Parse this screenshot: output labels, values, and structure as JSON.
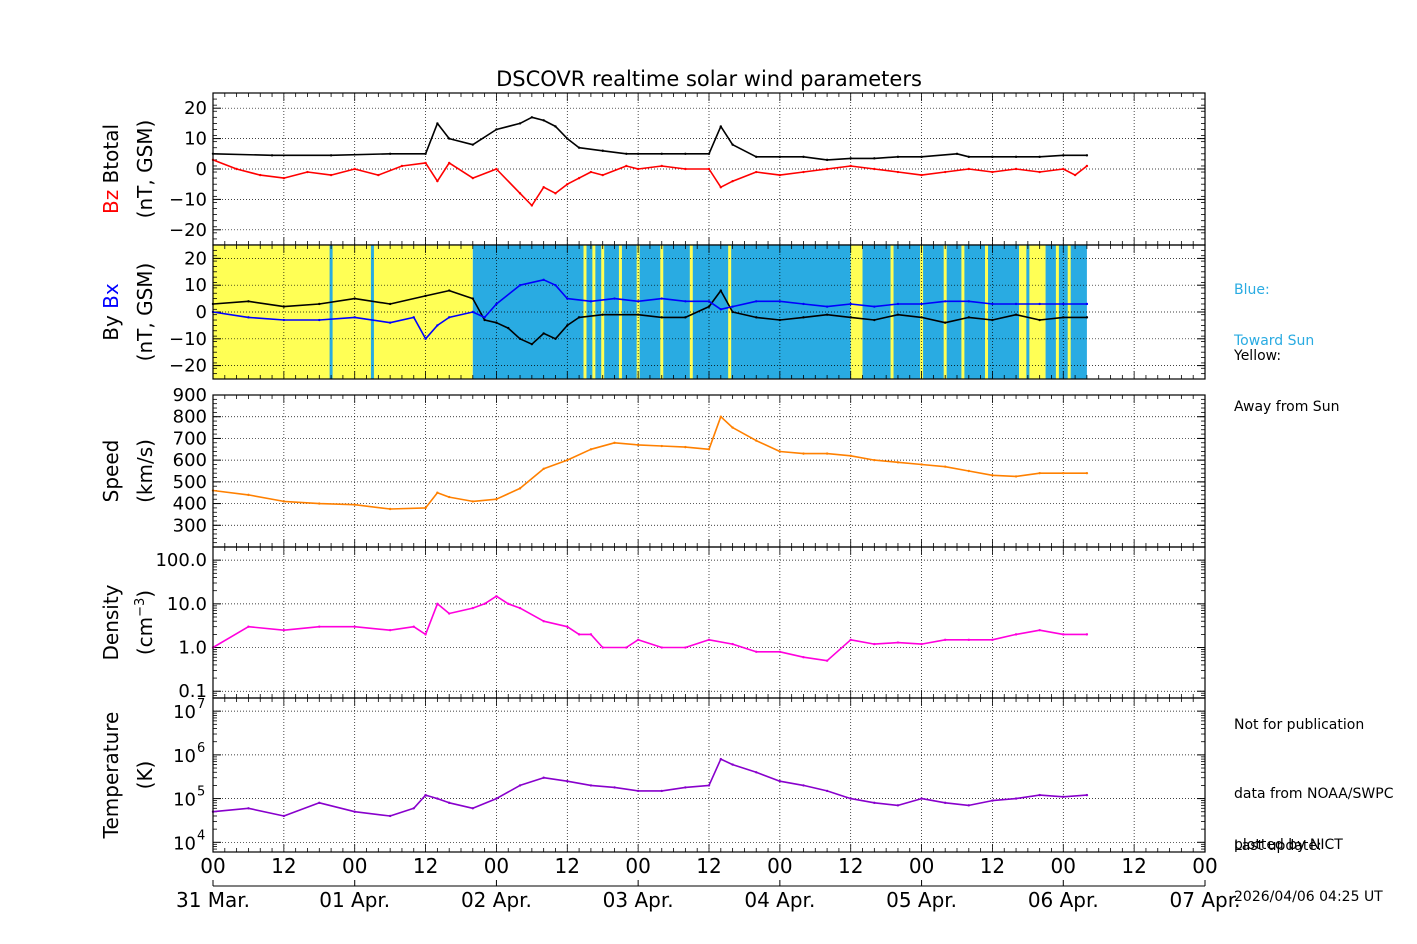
{
  "chart_data": {
    "type": "line",
    "title": "DSCOVR realtime solar wind parameters",
    "x_axis": {
      "unit": "hours since 31 Mar. 00 UT",
      "range": [
        0,
        168
      ],
      "hour_ticks": [
        0,
        12,
        24,
        36,
        48,
        60,
        72,
        84,
        96,
        108,
        120,
        132,
        144,
        156,
        168
      ],
      "hour_tick_labels": [
        "00",
        "12",
        "00",
        "12",
        "00",
        "12",
        "00",
        "12",
        "00",
        "12",
        "00",
        "12",
        "00",
        "12",
        "00"
      ],
      "day_ticks": [
        0,
        24,
        48,
        72,
        96,
        120,
        144,
        168
      ],
      "day_labels": [
        "31 Mar.",
        "01 Apr.",
        "02 Apr.",
        "03 Apr.",
        "04 Apr.",
        "05 Apr.",
        "06 Apr.",
        "07 Apr."
      ],
      "data_end": 148
    },
    "panels": [
      {
        "id": "btotal-bz",
        "scale": "linear",
        "ylim": [
          -25,
          25
        ],
        "ticks": [
          20,
          10,
          0,
          -10,
          -20
        ],
        "tick_labels": [
          "20",
          "10",
          "0",
          "−10",
          "−20"
        ],
        "ylabel_units": "(nT, GSM)",
        "label_a": "Bz",
        "label_a_color": "#ff0000",
        "label_b": "Btotal",
        "label_b_color": "#000000",
        "series": [
          {
            "name": "Btotal",
            "color": "#000000",
            "x": [
              0,
              10,
              20,
              30,
              36,
              38,
              40,
              44,
              48,
              52,
              54,
              56,
              58,
              60,
              62,
              66,
              70,
              72,
              76,
              80,
              84,
              86,
              88,
              92,
              96,
              100,
              104,
              108,
              112,
              116,
              120,
              126,
              128,
              132,
              136,
              140,
              144,
              148
            ],
            "y": [
              5,
              4.5,
              4.5,
              5,
              5,
              15,
              10,
              8,
              13,
              15,
              17,
              16,
              14,
              10,
              7,
              6,
              5,
              5,
              5,
              5,
              5,
              14,
              8,
              4,
              4,
              4,
              3,
              3.5,
              3.5,
              4,
              4,
              5,
              4,
              4,
              4,
              4,
              4.5,
              4.5
            ]
          },
          {
            "name": "Bz",
            "color": "#ff0000",
            "x": [
              0,
              4,
              8,
              12,
              16,
              20,
              24,
              28,
              32,
              36,
              38,
              40,
              44,
              48,
              52,
              54,
              56,
              58,
              60,
              62,
              64,
              66,
              70,
              72,
              76,
              80,
              84,
              86,
              88,
              92,
              96,
              100,
              104,
              108,
              112,
              116,
              120,
              124,
              128,
              132,
              136,
              140,
              144,
              146,
              148
            ],
            "y": [
              3,
              0,
              -2,
              -3,
              -1,
              -2,
              0,
              -2,
              1,
              2,
              -4,
              2,
              -3,
              0,
              -8,
              -12,
              -6,
              -8,
              -5,
              -3,
              -1,
              -2,
              1,
              0,
              1,
              0,
              0,
              -6,
              -4,
              -1,
              -2,
              -1,
              0,
              1,
              0,
              -1,
              -2,
              -1,
              0,
              -1,
              0,
              -1,
              0,
              -2,
              1
            ]
          }
        ]
      },
      {
        "id": "bx-by",
        "scale": "linear",
        "ylim": [
          -25,
          25
        ],
        "ticks": [
          20,
          10,
          0,
          -10,
          -20
        ],
        "tick_labels": [
          "20",
          "10",
          "0",
          "−10",
          "−20"
        ],
        "ylabel_units": "(nT, GSM)",
        "label_a": "By",
        "label_a_color": "#000000",
        "label_b": "Bx",
        "label_b_color": "#0000ff",
        "sector_colors": {
          "away": "#ffff55",
          "toward": "#29abe2"
        },
        "sectors": [
          {
            "start": 0,
            "end": 44,
            "type": "away"
          },
          {
            "start": 44,
            "end": 108,
            "type": "toward"
          },
          {
            "start": 108,
            "end": 110,
            "type": "away"
          },
          {
            "start": 110,
            "end": 136.5,
            "type": "toward"
          },
          {
            "start": 136.5,
            "end": 141,
            "type": "away"
          },
          {
            "start": 141,
            "end": 148,
            "type": "toward"
          }
        ],
        "sector_streaks": [
          {
            "at": 20,
            "type": "toward"
          },
          {
            "at": 27,
            "type": "toward"
          },
          {
            "at": 63,
            "type": "away"
          },
          {
            "at": 64.5,
            "type": "away"
          },
          {
            "at": 66,
            "type": "away"
          },
          {
            "at": 69,
            "type": "away"
          },
          {
            "at": 72,
            "type": "away"
          },
          {
            "at": 76,
            "type": "away"
          },
          {
            "at": 81,
            "type": "away"
          },
          {
            "at": 87.5,
            "type": "away"
          },
          {
            "at": 115,
            "type": "away"
          },
          {
            "at": 120,
            "type": "away"
          },
          {
            "at": 124,
            "type": "away"
          },
          {
            "at": 127,
            "type": "away"
          },
          {
            "at": 131,
            "type": "away"
          },
          {
            "at": 138,
            "type": "toward"
          },
          {
            "at": 143,
            "type": "away"
          },
          {
            "at": 145,
            "type": "away"
          }
        ],
        "series": [
          {
            "name": "By",
            "color": "#000000",
            "x": [
              0,
              6,
              12,
              18,
              24,
              30,
              36,
              40,
              44,
              46,
              48,
              50,
              52,
              54,
              56,
              58,
              60,
              62,
              66,
              72,
              76,
              80,
              84,
              86,
              88,
              92,
              96,
              100,
              104,
              108,
              112,
              116,
              120,
              124,
              128,
              132,
              136,
              140,
              144,
              148
            ],
            "y": [
              3,
              4,
              2,
              3,
              5,
              3,
              6,
              8,
              5,
              -3,
              -4,
              -6,
              -10,
              -12,
              -8,
              -10,
              -5,
              -2,
              -1,
              -1,
              -2,
              -2,
              2,
              8,
              0,
              -2,
              -3,
              -2,
              -1,
              -2,
              -3,
              -1,
              -2,
              -4,
              -2,
              -3,
              -1,
              -3,
              -2,
              -2
            ]
          },
          {
            "name": "Bx",
            "color": "#0000ff",
            "x": [
              0,
              6,
              12,
              18,
              24,
              30,
              34,
              36,
              38,
              40,
              44,
              46,
              48,
              52,
              56,
              58,
              60,
              64,
              68,
              72,
              76,
              80,
              84,
              86,
              88,
              92,
              96,
              100,
              104,
              108,
              112,
              116,
              120,
              124,
              128,
              132,
              136,
              140,
              144,
              148
            ],
            "y": [
              0,
              -2,
              -3,
              -3,
              -2,
              -4,
              -2,
              -10,
              -5,
              -2,
              0,
              -2,
              3,
              10,
              12,
              10,
              5,
              4,
              5,
              4,
              5,
              4,
              4,
              1,
              2,
              4,
              4,
              3,
              2,
              3,
              2,
              3,
              3,
              4,
              4,
              3,
              3,
              3,
              3,
              3
            ]
          }
        ],
        "legend": {
          "blue_title": "Blue:",
          "blue_text": "Toward Sun",
          "yellow_title": "Yellow:",
          "yellow_text": "Away from Sun"
        }
      },
      {
        "id": "speed",
        "scale": "linear",
        "ylim": [
          200,
          900
        ],
        "ticks": [
          900,
          800,
          700,
          600,
          500,
          400,
          300
        ],
        "tick_labels": [
          "900",
          "800",
          "700",
          "600",
          "500",
          "400",
          "300"
        ],
        "ylabel_main": "Speed",
        "ylabel_units": "(km/s)",
        "series": [
          {
            "name": "Speed",
            "color": "#ff8000",
            "x": [
              0,
              6,
              12,
              18,
              24,
              30,
              36,
              38,
              40,
              44,
              48,
              52,
              56,
              60,
              64,
              68,
              72,
              76,
              80,
              84,
              86,
              88,
              92,
              96,
              100,
              104,
              108,
              112,
              116,
              120,
              124,
              128,
              132,
              136,
              140,
              144,
              148
            ],
            "y": [
              460,
              440,
              410,
              400,
              395,
              375,
              380,
              450,
              430,
              410,
              420,
              470,
              560,
              600,
              650,
              680,
              670,
              665,
              660,
              650,
              800,
              750,
              690,
              640,
              630,
              630,
              620,
              600,
              590,
              580,
              570,
              550,
              530,
              525,
              540,
              540,
              540
            ]
          }
        ]
      },
      {
        "id": "density",
        "scale": "log",
        "ylim": [
          0.07,
          200
        ],
        "ticks": [
          100,
          10,
          1,
          0.1
        ],
        "tick_labels": [
          "100.0",
          "10.0",
          "1.0",
          "0.1"
        ],
        "ylabel_main": "Density",
        "ylabel_units": "(cm",
        "ylabel_sup": "−3",
        "ylabel_close": ")",
        "series": [
          {
            "name": "Density",
            "color": "#ff00dd",
            "x": [
              0,
              6,
              12,
              18,
              24,
              30,
              34,
              36,
              38,
              40,
              44,
              46,
              48,
              50,
              52,
              56,
              60,
              62,
              64,
              66,
              70,
              72,
              76,
              80,
              84,
              88,
              92,
              96,
              100,
              104,
              108,
              112,
              116,
              120,
              124,
              128,
              132,
              136,
              140,
              144,
              148
            ],
            "y": [
              1,
              3,
              2.5,
              3,
              3,
              2.5,
              3,
              2,
              10,
              6,
              8,
              10,
              15,
              10,
              8,
              4,
              3,
              2,
              2,
              1,
              1,
              1.5,
              1,
              1,
              1.5,
              1.2,
              0.8,
              0.8,
              0.6,
              0.5,
              1.5,
              1.2,
              1.3,
              1.2,
              1.5,
              1.5,
              1.5,
              2,
              2.5,
              2,
              2
            ]
          }
        ]
      },
      {
        "id": "temperature",
        "scale": "log",
        "ylim": [
          6000,
          20000000
        ],
        "ticks": [
          10000000,
          1000000,
          100000,
          10000
        ],
        "tick_labels": [
          "10",
          "10",
          "10",
          "10"
        ],
        "tick_exponents": [
          "7",
          "6",
          "5",
          "4"
        ],
        "ylabel_main": "Temperature",
        "ylabel_units": "(K)",
        "series": [
          {
            "name": "Temperature",
            "color": "#8800cc",
            "x": [
              0,
              6,
              12,
              18,
              24,
              30,
              34,
              36,
              38,
              40,
              44,
              48,
              52,
              56,
              60,
              64,
              68,
              72,
              76,
              80,
              84,
              86,
              88,
              92,
              96,
              100,
              104,
              108,
              112,
              116,
              120,
              124,
              128,
              132,
              136,
              140,
              144,
              148
            ],
            "y": [
              50000,
              60000,
              40000,
              80000,
              50000,
              40000,
              60000,
              120000,
              100000,
              80000,
              60000,
              100000,
              200000,
              300000,
              250000,
              200000,
              180000,
              150000,
              150000,
              180000,
              200000,
              800000,
              600000,
              400000,
              250000,
              200000,
              150000,
              100000,
              80000,
              70000,
              100000,
              80000,
              70000,
              90000,
              100000,
              120000,
              110000,
              120000
            ]
          }
        ]
      }
    ],
    "notes": {
      "publication": "Not for publication",
      "source_1": "data from NOAA/SWPC",
      "source_2": "plotted by NICT",
      "update_label": "Last update:",
      "update_time": "2026/04/06 04:25 UT"
    }
  }
}
